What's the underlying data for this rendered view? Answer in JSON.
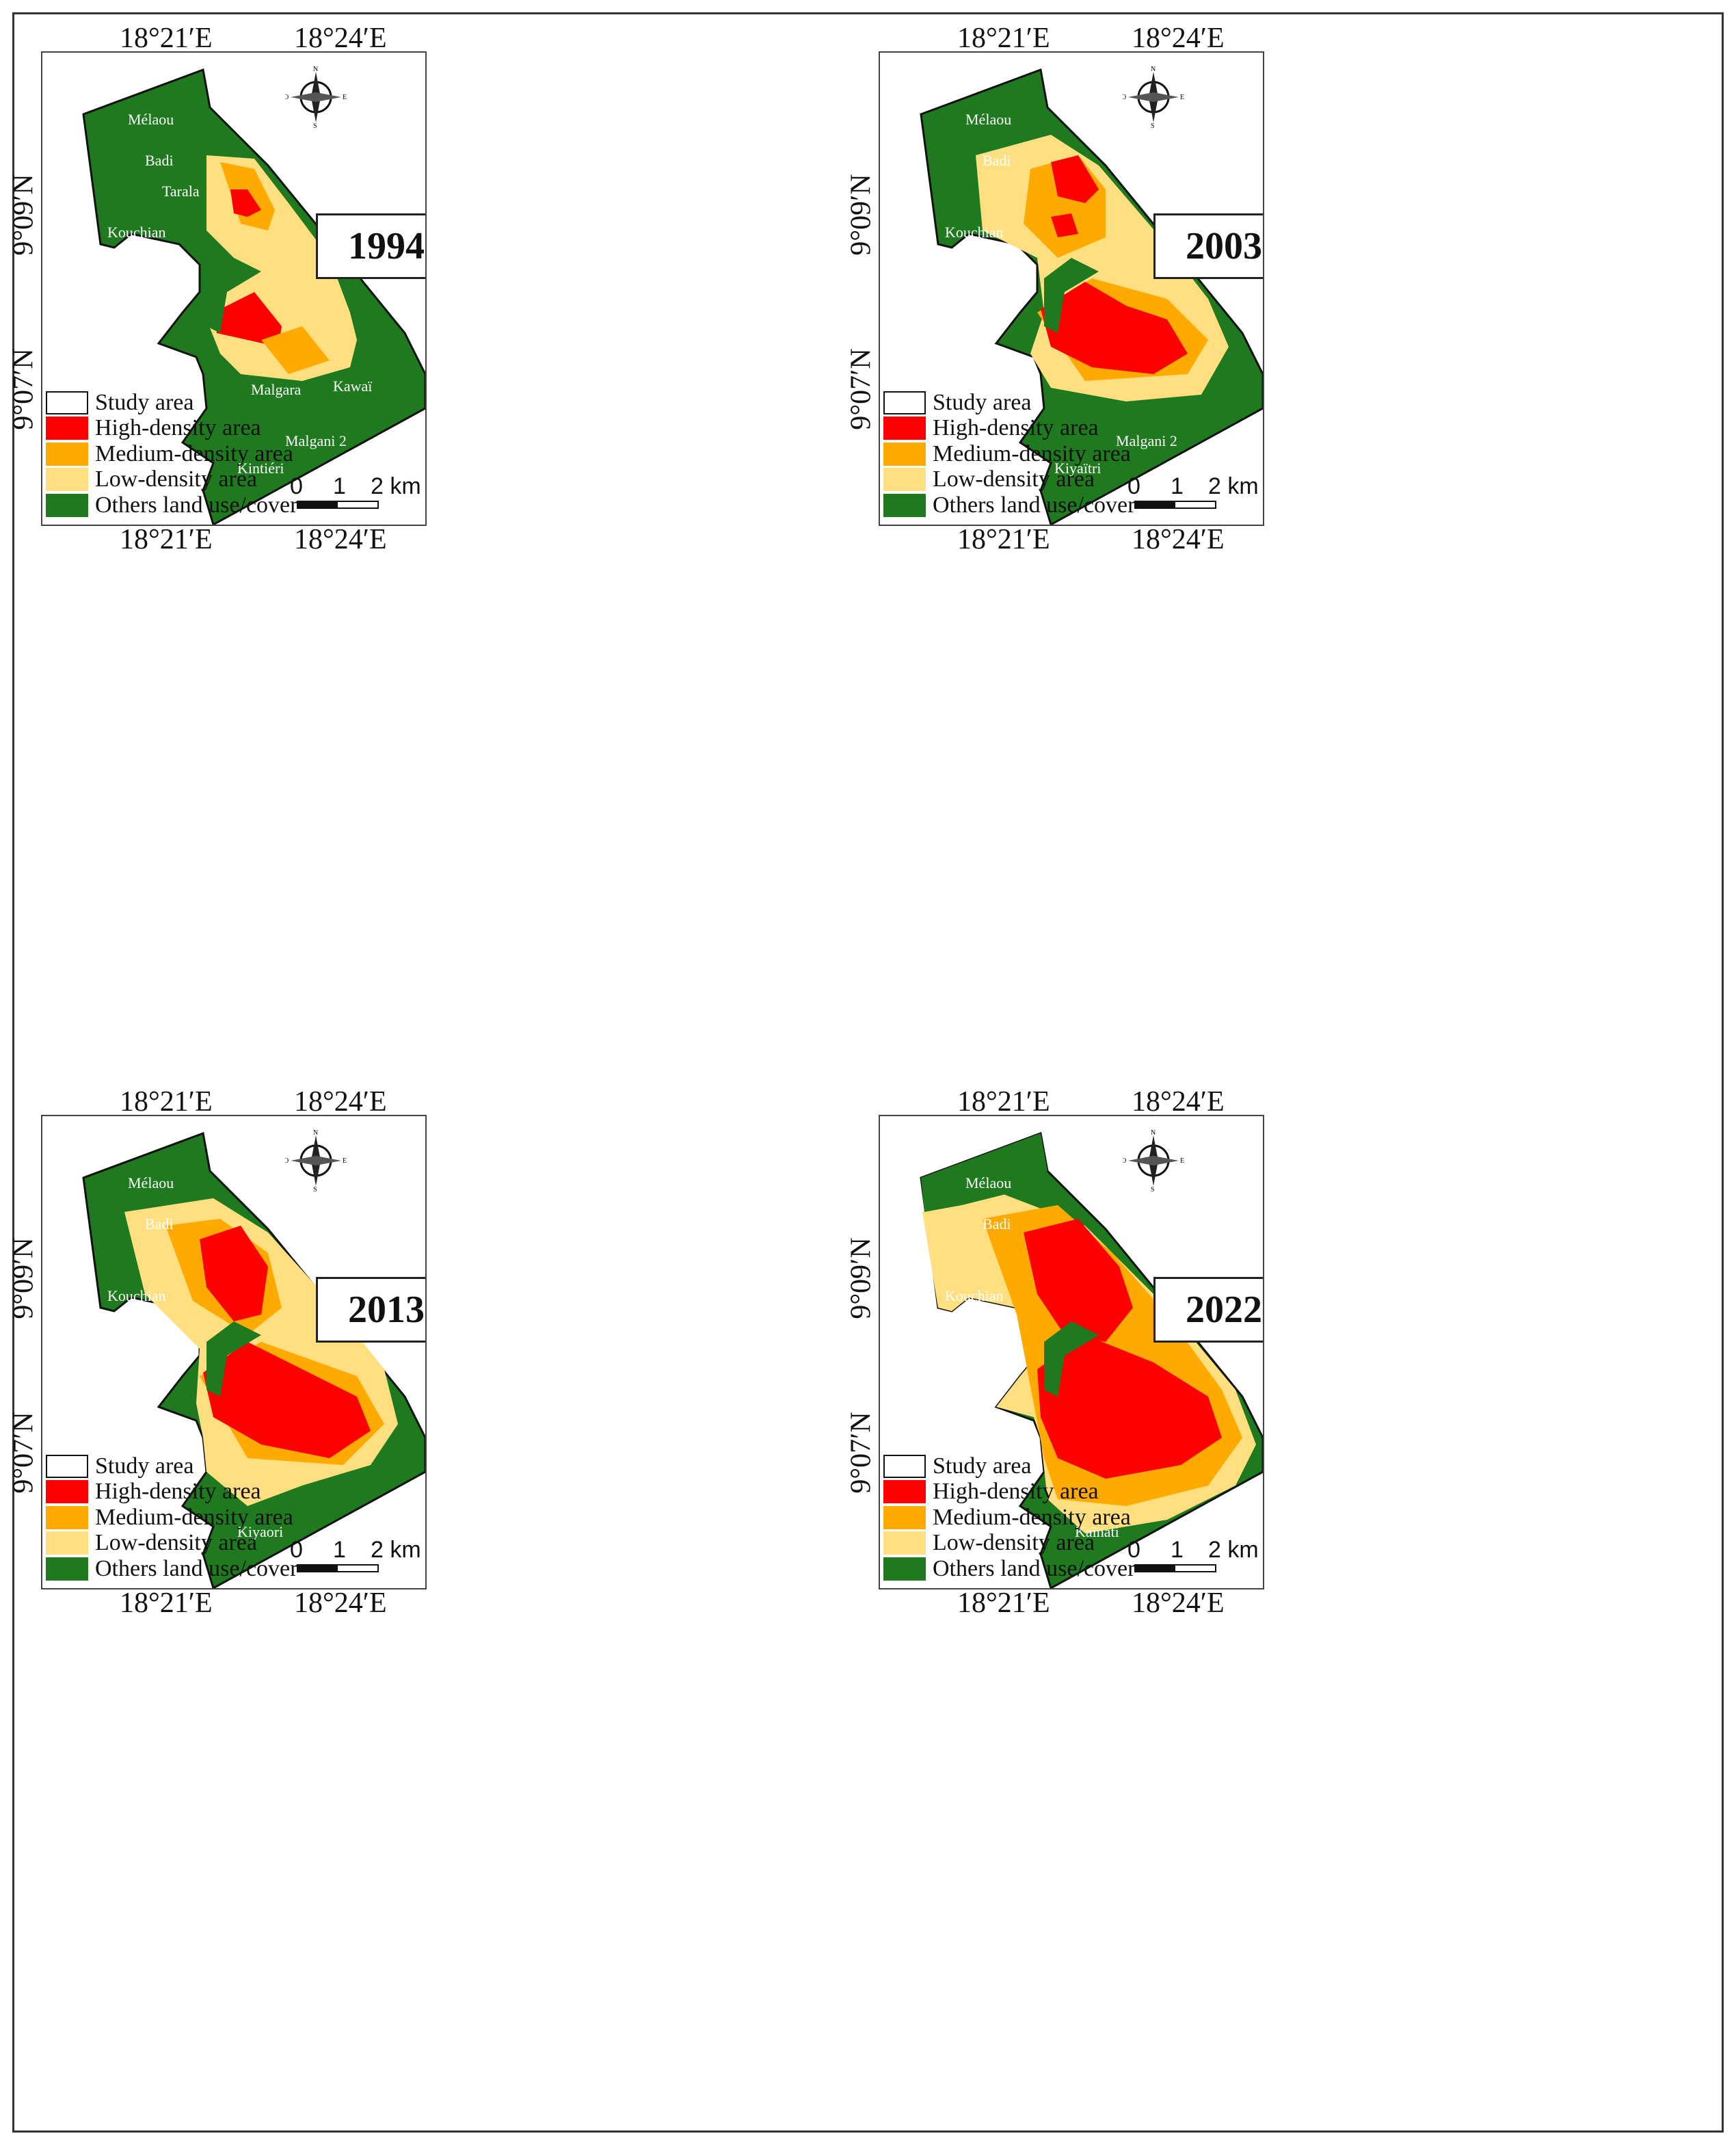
{
  "legend": [
    {
      "label": "Study area",
      "color": "#ffffff"
    },
    {
      "label": "High-density area",
      "color": "#ff0000"
    },
    {
      "label": "Medium-density area",
      "color": "#ffaa00"
    },
    {
      "label": "Low-density area",
      "color": "#ffdf80"
    },
    {
      "label": "Others land use/cover",
      "color": "#1f7a1f"
    }
  ],
  "coords": {
    "lon_left": "18°21′E",
    "lon_right": "18°24′E",
    "lat_top": "9°09′N",
    "lat_bottom": "9°07′N"
  },
  "scale": {
    "zero": "0",
    "one": "1",
    "two": "2 km"
  },
  "compass": {
    "n": "N",
    "s": "S",
    "e": "E",
    "w": "O"
  },
  "panels": [
    {
      "year": "1994",
      "places": [
        "Mélaou",
        "Badi",
        "Tarala",
        "Kouchian",
        "Malgara",
        "Kawaï",
        "Malgani 2",
        "Kintiéri"
      ]
    },
    {
      "year": "2003",
      "places": [
        "Mélaou",
        "Badi",
        "Kouchian",
        "Malgani 2",
        "Kiyaïtri"
      ]
    },
    {
      "year": "2013",
      "places": [
        "Mélaou",
        "Badi",
        "Kouchian",
        "Kiyaori"
      ]
    },
    {
      "year": "2022",
      "places": [
        "Mélaou",
        "Badi",
        "Kouchian",
        "Kaïnati"
      ]
    }
  ]
}
